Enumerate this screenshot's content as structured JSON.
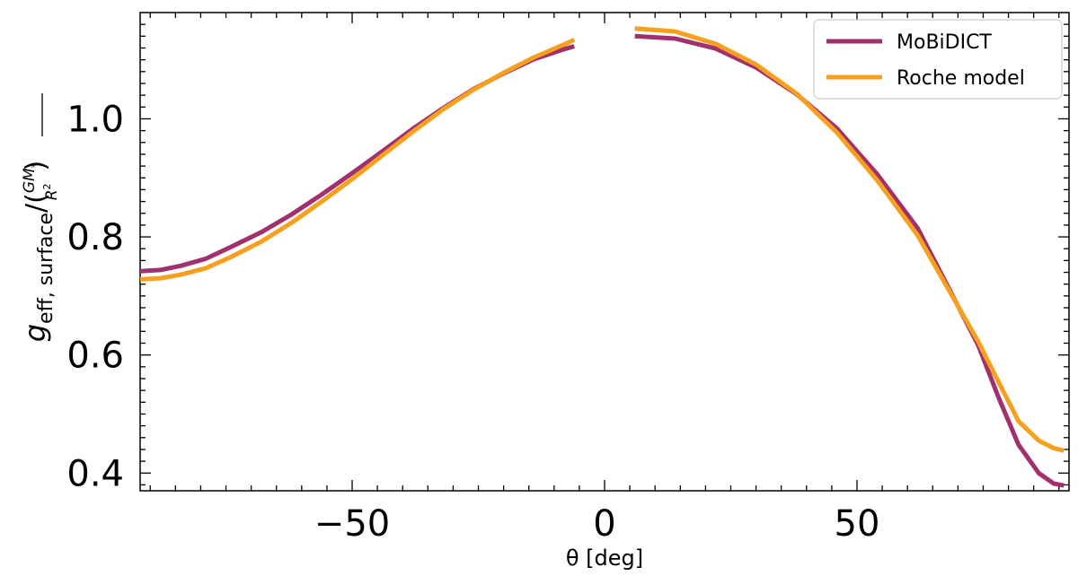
{
  "chart_data": {
    "type": "line",
    "xlabel": "θ [deg]",
    "ylabel": {
      "g": "g",
      "subscript": "eff, surface",
      "slash_paren": "/(",
      "numerator": "GM",
      "star": "*",
      "denominator": "R",
      "power": "2",
      "close": ")"
    },
    "xlim": [
      -92,
      92
    ],
    "ylim": [
      0.37,
      1.18
    ],
    "x_ticks": [
      -50,
      0,
      50
    ],
    "x_tick_labels": [
      "−50",
      "0",
      "50"
    ],
    "y_ticks": [
      0.4,
      0.6,
      0.8,
      1.0
    ],
    "y_tick_labels": [
      "0.4",
      "0.6",
      "0.8",
      "1.0"
    ],
    "grid": false,
    "legend_position": "top-right",
    "series": [
      {
        "name": "MoBiDICT",
        "color": "#a1306e",
        "segments": [
          [
            [
              -92,
              0.742
            ],
            [
              -88,
              0.744
            ],
            [
              -84,
              0.751
            ],
            [
              -79,
              0.763
            ],
            [
              -74,
              0.783
            ],
            [
              -68,
              0.808
            ],
            [
              -62,
              0.838
            ],
            [
              -56,
              0.872
            ],
            [
              -50,
              0.908
            ],
            [
              -44,
              0.945
            ],
            [
              -38,
              0.983
            ],
            [
              -32,
              1.018
            ],
            [
              -26,
              1.05
            ],
            [
              -20,
              1.077
            ],
            [
              -14,
              1.101
            ],
            [
              -8,
              1.118
            ],
            [
              -6,
              1.123
            ]
          ],
          [
            [
              6,
              1.14
            ],
            [
              14,
              1.136
            ],
            [
              22,
              1.119
            ],
            [
              30,
              1.087
            ],
            [
              38,
              1.042
            ],
            [
              46,
              0.984
            ],
            [
              54,
              0.906
            ],
            [
              62,
              0.815
            ],
            [
              68,
              0.716
            ],
            [
              74,
              0.617
            ],
            [
              78,
              0.529
            ],
            [
              82,
              0.448
            ],
            [
              86,
              0.4
            ],
            [
              89,
              0.382
            ],
            [
              91,
              0.379
            ]
          ]
        ]
      },
      {
        "name": "Roche model",
        "color": "#f7a01e",
        "segments": [
          [
            [
              -92,
              0.728
            ],
            [
              -88,
              0.73
            ],
            [
              -84,
              0.736
            ],
            [
              -79,
              0.747
            ],
            [
              -74,
              0.766
            ],
            [
              -68,
              0.792
            ],
            [
              -62,
              0.824
            ],
            [
              -56,
              0.86
            ],
            [
              -50,
              0.898
            ],
            [
              -44,
              0.938
            ],
            [
              -38,
              0.978
            ],
            [
              -32,
              1.016
            ],
            [
              -26,
              1.049
            ],
            [
              -20,
              1.078
            ],
            [
              -14,
              1.104
            ],
            [
              -8,
              1.126
            ],
            [
              -6,
              1.134
            ]
          ],
          [
            [
              6,
              1.153
            ],
            [
              14,
              1.148
            ],
            [
              22,
              1.127
            ],
            [
              30,
              1.092
            ],
            [
              38,
              1.043
            ],
            [
              46,
              0.977
            ],
            [
              54,
              0.896
            ],
            [
              62,
              0.803
            ],
            [
              68,
              0.713
            ],
            [
              74,
              0.623
            ],
            [
              78,
              0.555
            ],
            [
              82,
              0.488
            ],
            [
              86,
              0.455
            ],
            [
              89,
              0.442
            ],
            [
              91,
              0.438
            ]
          ]
        ]
      }
    ]
  }
}
